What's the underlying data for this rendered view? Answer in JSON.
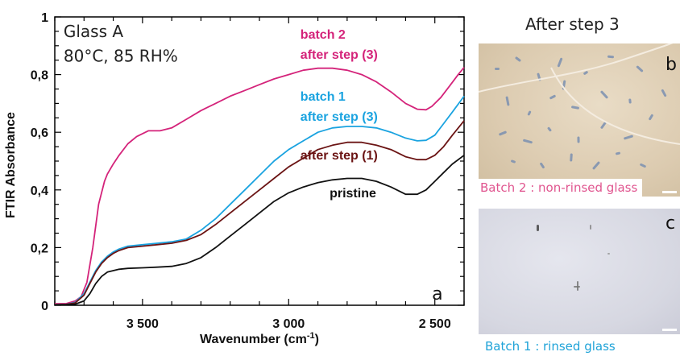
{
  "chart_data": {
    "type": "line",
    "xlabel": "Wavenumber (cm",
    "xlabel_sup": "-1",
    "xlabel_close": ")",
    "ylabel": "FTIR Absorbance",
    "xlim": [
      3800,
      2400
    ],
    "ylim": [
      0,
      1
    ],
    "x_reversed": true,
    "x_ticks": [
      {
        "value": 3500,
        "label": "3 500"
      },
      {
        "value": 3000,
        "label": "3 000"
      },
      {
        "value": 2500,
        "label": "2 500"
      }
    ],
    "y_ticks": [
      {
        "value": 0,
        "label": "0"
      },
      {
        "value": 0.2,
        "label": "0,2"
      },
      {
        "value": 0.4,
        "label": "0,4"
      },
      {
        "value": 0.6,
        "label": "0,6"
      },
      {
        "value": 0.8,
        "label": "0,8"
      },
      {
        "value": 1,
        "label": "1"
      }
    ],
    "annotations": [
      {
        "text": "Glass A",
        "x": 3770,
        "y": 0.93,
        "color": "#222222",
        "weight": "normal",
        "size": 20
      },
      {
        "text": "80°C, 85 RH%",
        "x": 3770,
        "y": 0.845,
        "color": "#222222",
        "weight": "normal",
        "size": 20
      },
      {
        "text": "batch 2",
        "x": 2960,
        "y": 0.925,
        "color": "#d4237a",
        "weight": "bold",
        "size": 16
      },
      {
        "text": "after step (3)",
        "x": 2960,
        "y": 0.855,
        "color": "#d4237a",
        "weight": "bold",
        "size": 16
      },
      {
        "text": "batch 1",
        "x": 2960,
        "y": 0.71,
        "color": "#1aa3e0",
        "weight": "bold",
        "size": 16
      },
      {
        "text": "after step (3)",
        "x": 2960,
        "y": 0.64,
        "color": "#1aa3e0",
        "weight": "bold",
        "size": 16
      },
      {
        "text": "after step (1)",
        "x": 2960,
        "y": 0.505,
        "color": "#6b1414",
        "weight": "bold",
        "size": 16
      },
      {
        "text": "pristine",
        "x": 2860,
        "y": 0.375,
        "color": "#111111",
        "weight": "bold",
        "size": 16
      },
      {
        "text": "a",
        "x": 2510,
        "y": 0.02,
        "color": "#111111",
        "weight": "normal",
        "size": 22
      }
    ],
    "series": [
      {
        "color": "#d4237a",
        "x": [
          3800,
          3760,
          3730,
          3710,
          3690,
          3670,
          3650,
          3630,
          3620,
          3600,
          3580,
          3550,
          3520,
          3480,
          3440,
          3400,
          3350,
          3300,
          3250,
          3200,
          3150,
          3100,
          3050,
          3000,
          2950,
          2900,
          2850,
          2800,
          2750,
          2700,
          2650,
          2600,
          2560,
          2530,
          2510,
          2480,
          2450,
          2420,
          2400
        ],
        "y": [
          0.005,
          0.006,
          0.015,
          0.03,
          0.08,
          0.2,
          0.35,
          0.43,
          0.455,
          0.49,
          0.52,
          0.56,
          0.585,
          0.605,
          0.605,
          0.615,
          0.645,
          0.675,
          0.7,
          0.725,
          0.745,
          0.765,
          0.785,
          0.8,
          0.815,
          0.822,
          0.822,
          0.815,
          0.8,
          0.775,
          0.74,
          0.7,
          0.68,
          0.678,
          0.69,
          0.72,
          0.76,
          0.8,
          0.825
        ]
      },
      {
        "color": "#1aa3e0",
        "x": [
          3800,
          3760,
          3730,
          3700,
          3680,
          3660,
          3640,
          3620,
          3600,
          3580,
          3550,
          3500,
          3450,
          3400,
          3350,
          3300,
          3250,
          3200,
          3150,
          3100,
          3050,
          3000,
          2950,
          2900,
          2850,
          2800,
          2750,
          2700,
          2650,
          2600,
          2560,
          2530,
          2500,
          2470,
          2440,
          2400
        ],
        "y": [
          0.002,
          0.003,
          0.01,
          0.04,
          0.08,
          0.12,
          0.15,
          0.17,
          0.185,
          0.195,
          0.205,
          0.21,
          0.215,
          0.22,
          0.23,
          0.26,
          0.3,
          0.35,
          0.4,
          0.45,
          0.5,
          0.54,
          0.57,
          0.6,
          0.615,
          0.62,
          0.62,
          0.615,
          0.6,
          0.58,
          0.57,
          0.572,
          0.59,
          0.63,
          0.67,
          0.725
        ]
      },
      {
        "color": "#6b1414",
        "x": [
          3800,
          3760,
          3730,
          3700,
          3680,
          3660,
          3640,
          3620,
          3600,
          3580,
          3550,
          3500,
          3450,
          3400,
          3350,
          3300,
          3250,
          3200,
          3150,
          3100,
          3050,
          3000,
          2950,
          2900,
          2850,
          2800,
          2750,
          2700,
          2650,
          2600,
          2560,
          2530,
          2500,
          2470,
          2440,
          2400
        ],
        "y": [
          0.002,
          0.003,
          0.008,
          0.035,
          0.075,
          0.115,
          0.145,
          0.165,
          0.18,
          0.19,
          0.2,
          0.205,
          0.21,
          0.215,
          0.225,
          0.245,
          0.28,
          0.32,
          0.36,
          0.4,
          0.44,
          0.48,
          0.51,
          0.54,
          0.555,
          0.565,
          0.565,
          0.555,
          0.54,
          0.515,
          0.505,
          0.505,
          0.52,
          0.55,
          0.59,
          0.64
        ]
      },
      {
        "color": "#111111",
        "x": [
          3800,
          3760,
          3730,
          3700,
          3680,
          3660,
          3640,
          3620,
          3600,
          3580,
          3550,
          3500,
          3450,
          3400,
          3350,
          3300,
          3250,
          3200,
          3150,
          3100,
          3050,
          3000,
          2950,
          2900,
          2850,
          2800,
          2750,
          2700,
          2650,
          2600,
          2560,
          2530,
          2500,
          2470,
          2440,
          2400
        ],
        "y": [
          0.001,
          0.002,
          0.004,
          0.015,
          0.04,
          0.075,
          0.1,
          0.115,
          0.12,
          0.125,
          0.128,
          0.13,
          0.132,
          0.135,
          0.145,
          0.165,
          0.2,
          0.24,
          0.28,
          0.32,
          0.36,
          0.39,
          0.41,
          0.425,
          0.435,
          0.44,
          0.44,
          0.43,
          0.41,
          0.385,
          0.385,
          0.4,
          0.43,
          0.46,
          0.49,
          0.52
        ]
      }
    ]
  },
  "photo_panel": {
    "title": "After step 3",
    "top_letter": "b",
    "top_caption": "Batch 2 : non-rinsed glass",
    "bottom_letter": "c",
    "bottom_caption": "Batch 1 : rinsed glass"
  }
}
